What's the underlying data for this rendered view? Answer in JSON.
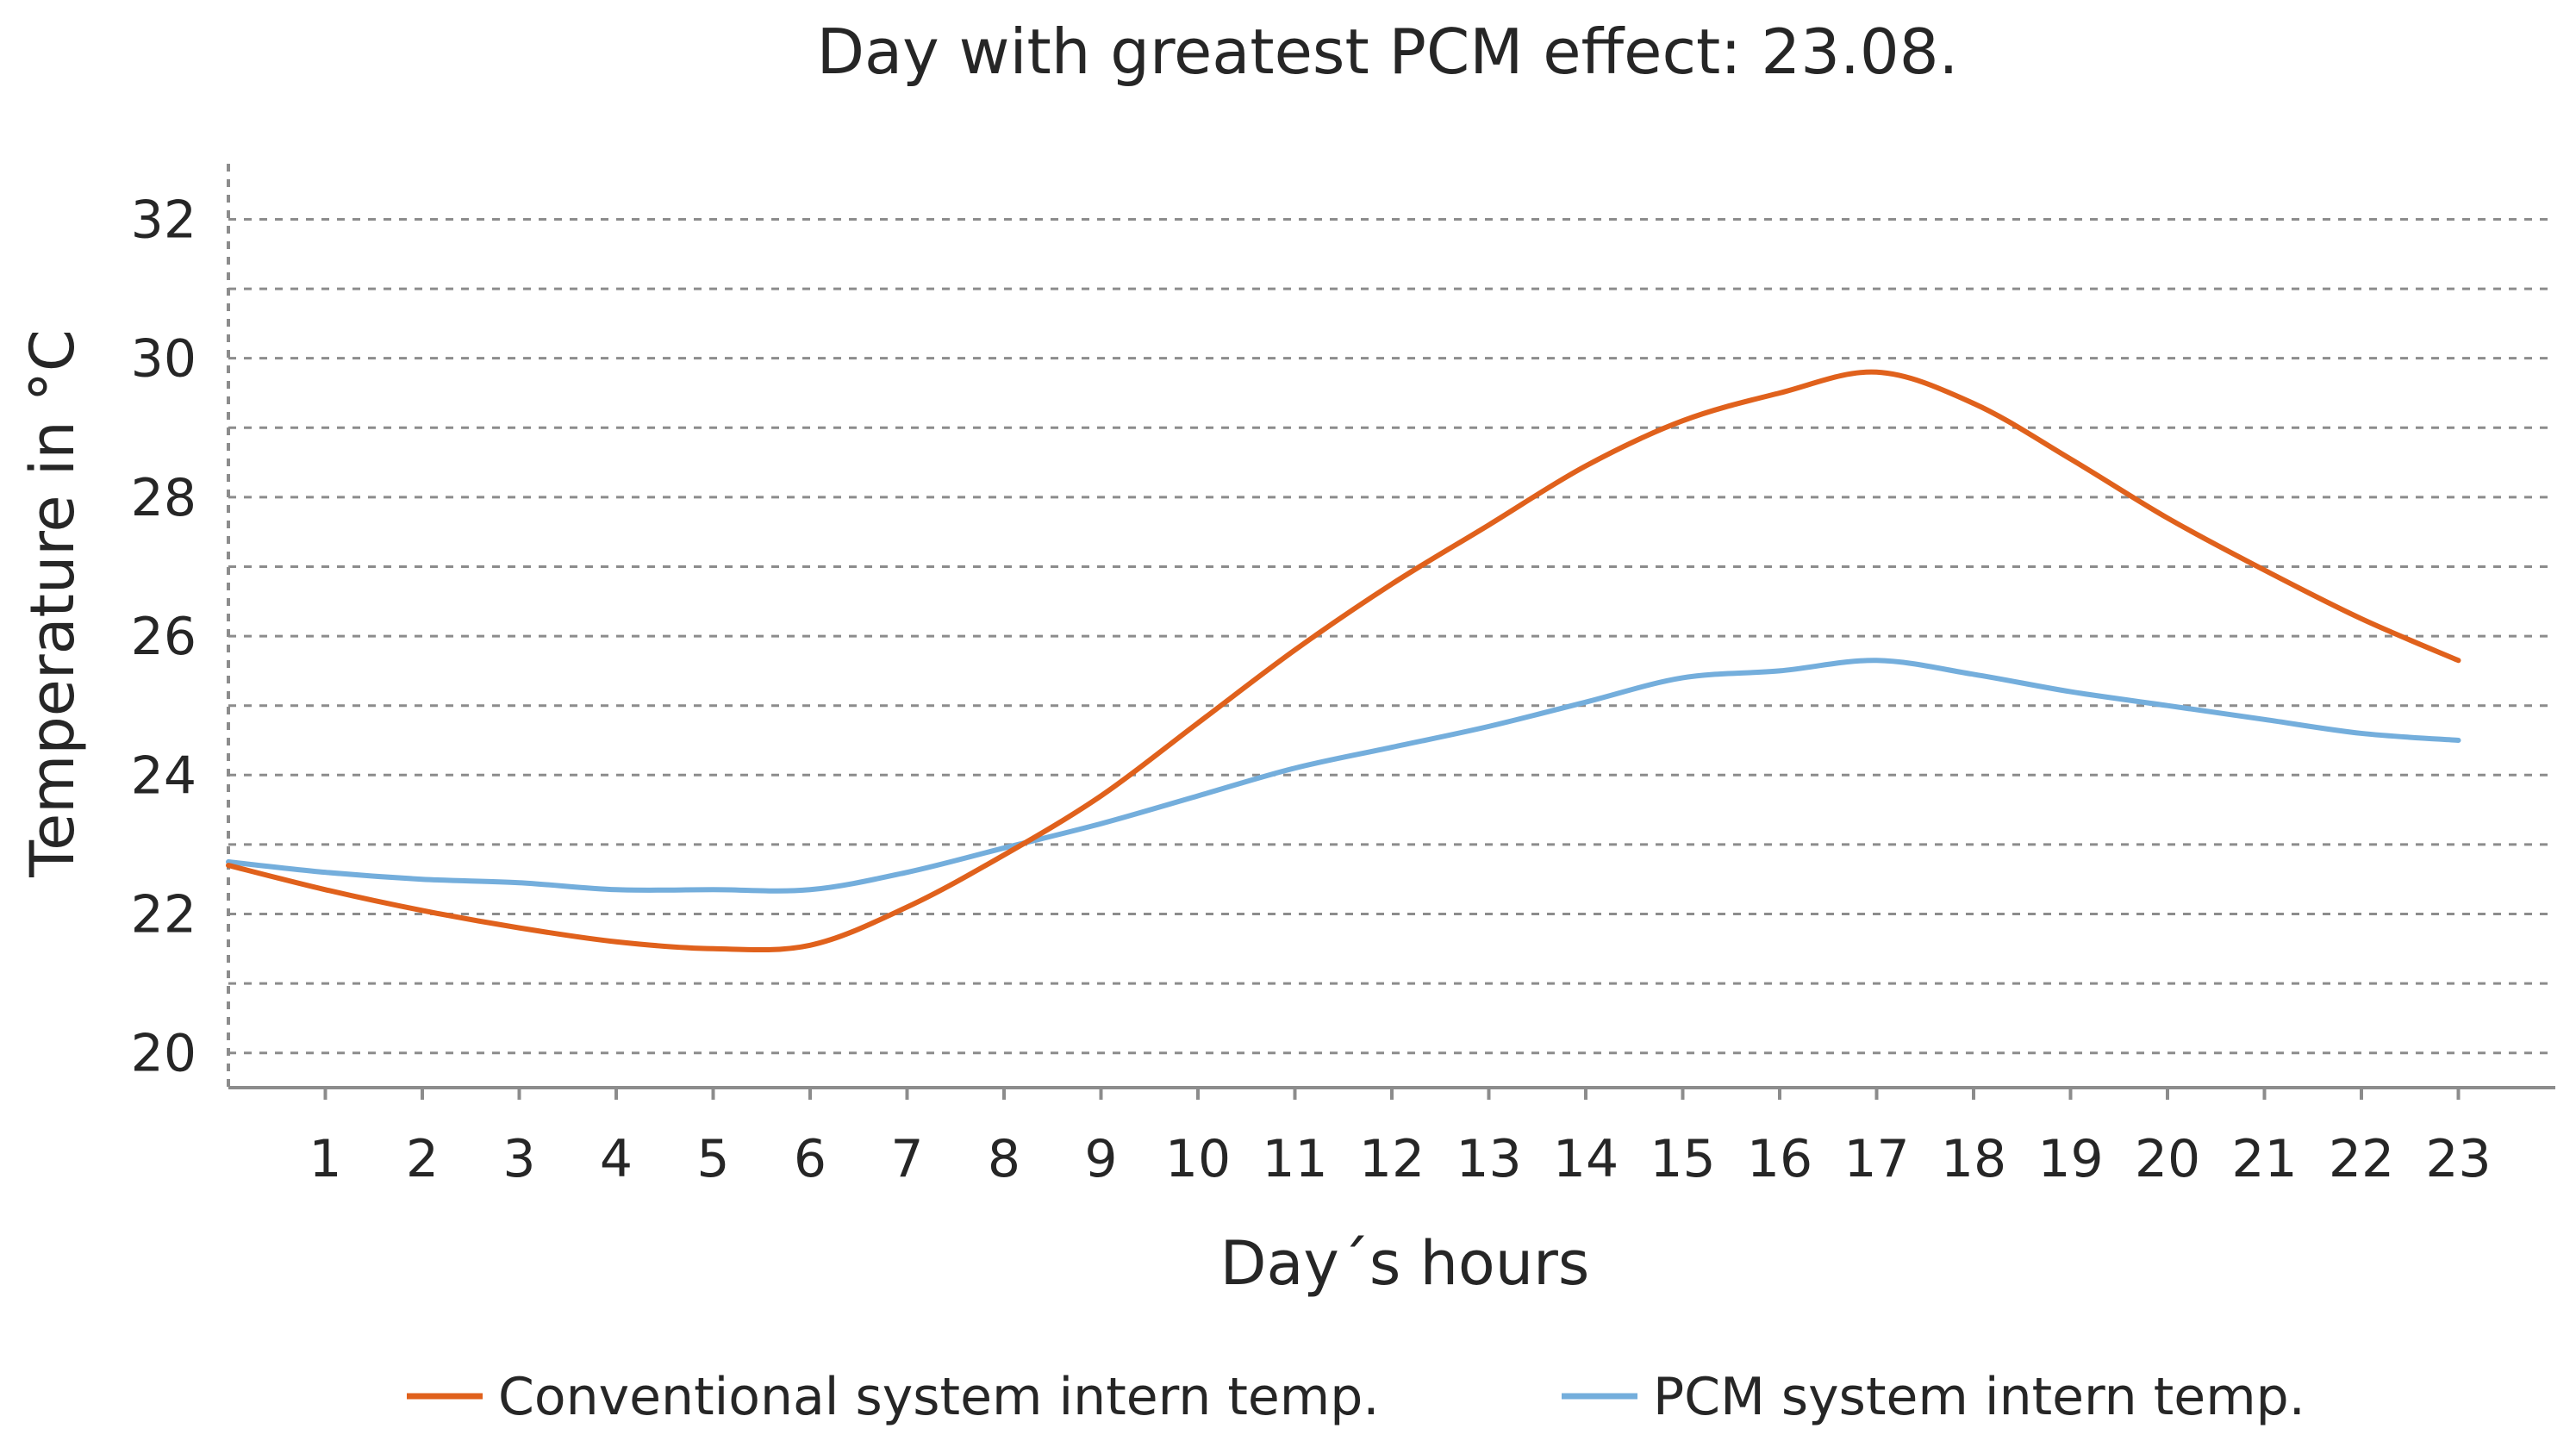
{
  "chart_data": {
    "type": "line",
    "title": "Day with greatest PCM effect: 23.08.",
    "xlabel": "Day´s hours",
    "ylabel": "Temperature in °C",
    "x": [
      0,
      1,
      2,
      3,
      4,
      5,
      6,
      7,
      8,
      9,
      10,
      11,
      12,
      13,
      14,
      15,
      16,
      17,
      18,
      19,
      20,
      21,
      22,
      23
    ],
    "x_tick_labels": [
      "1",
      "2",
      "3",
      "4",
      "5",
      "6",
      "7",
      "8",
      "9",
      "10",
      "11",
      "12",
      "13",
      "14",
      "15",
      "16",
      "17",
      "18",
      "19",
      "20",
      "21",
      "22",
      "23"
    ],
    "xlim": [
      0,
      24
    ],
    "ylim": [
      19.5,
      32.8
    ],
    "y_ticks": [
      20,
      22,
      24,
      26,
      28,
      30,
      32
    ],
    "y_gridlines": [
      20,
      21,
      22,
      23,
      24,
      25,
      26,
      27,
      28,
      29,
      30,
      31,
      32
    ],
    "grid": true,
    "legend_position": "bottom",
    "series": [
      {
        "name": "Conventional system intern temp.",
        "color": "#E0611C",
        "values": [
          22.7,
          22.35,
          22.05,
          21.8,
          21.6,
          21.5,
          21.55,
          22.1,
          22.85,
          23.7,
          24.75,
          25.8,
          26.75,
          27.6,
          28.45,
          29.1,
          29.5,
          29.8,
          29.35,
          28.55,
          27.7,
          26.95,
          26.25,
          25.65
        ]
      },
      {
        "name": "PCM system intern temp.",
        "color": "#74AEDC",
        "values": [
          22.75,
          22.6,
          22.5,
          22.45,
          22.35,
          22.35,
          22.35,
          22.6,
          22.95,
          23.3,
          23.7,
          24.1,
          24.4,
          24.7,
          25.05,
          25.4,
          25.5,
          25.65,
          25.45,
          25.2,
          25.0,
          24.8,
          24.6,
          24.5
        ]
      }
    ]
  }
}
